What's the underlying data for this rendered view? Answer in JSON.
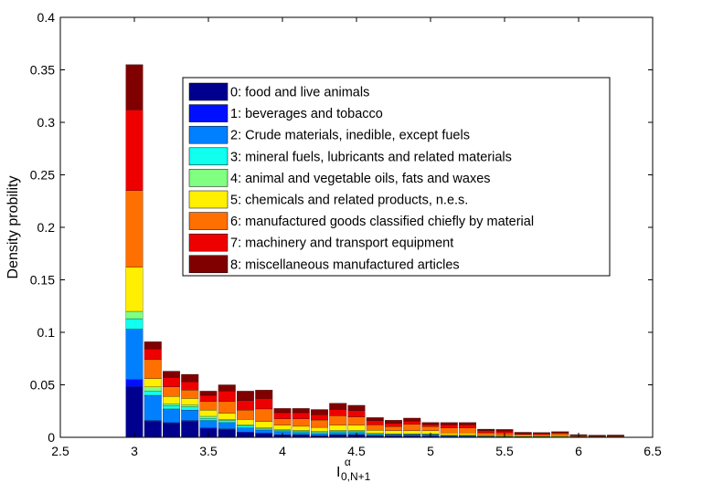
{
  "chart_data": {
    "type": "bar",
    "stacked": true,
    "title": "",
    "xlabel": {
      "base": "I",
      "sup": "α",
      "sub": "0,N+1"
    },
    "ylabel": "Density probility",
    "xlim": [
      2.5,
      6.5
    ],
    "ylim": [
      0,
      0.4
    ],
    "xticks": [
      "2.5",
      "3",
      "3.5",
      "4",
      "4.5",
      "5",
      "5.5",
      "6",
      "6.5"
    ],
    "xtick_values": [
      2.5,
      3,
      3.5,
      4,
      4.5,
      5,
      5.5,
      6,
      6.5
    ],
    "yticks": [
      "0",
      "0.05",
      "0.1",
      "0.15",
      "0.2",
      "0.25",
      "0.3",
      "0.35",
      "0.4"
    ],
    "ytick_values": [
      0,
      0.05,
      0.1,
      0.15,
      0.2,
      0.25,
      0.3,
      0.35,
      0.4
    ],
    "grid": false,
    "legend_position": "upper-center",
    "bin_width": 0.125,
    "x": [
      3.0,
      3.125,
      3.25,
      3.375,
      3.5,
      3.625,
      3.75,
      3.875,
      4.0,
      4.125,
      4.25,
      4.375,
      4.5,
      4.625,
      4.75,
      4.875,
      5.0,
      5.125,
      5.25,
      5.375,
      5.5,
      5.625,
      5.75,
      5.875,
      6.0,
      6.125,
      6.25
    ],
    "series": [
      {
        "name": "0: food and live animals",
        "color": "#00008f",
        "values": [
          0.048,
          0.015,
          0.013,
          0.015,
          0.008,
          0.007,
          0.004,
          0.003,
          0.002,
          0.002,
          0.001,
          0.002,
          0.002,
          0.001,
          0.001,
          0.001,
          0.001,
          0.0005,
          0.0005,
          0.0003,
          0.0002,
          0.0002,
          0.0001,
          0.0001,
          0.0001,
          0.0001,
          0.0001
        ]
      },
      {
        "name": "1: beverages and tobacco",
        "color": "#0010ff",
        "values": [
          0.007,
          0.001,
          0.001,
          0.001,
          0.001,
          0.001,
          0.001,
          0.001,
          0.0005,
          0.0005,
          0.0005,
          0.0005,
          0.0005,
          0.0003,
          0.0003,
          0.0003,
          0.0002,
          0.0002,
          0.0002,
          0.0001,
          0.0001,
          0.0001,
          0.0001,
          0,
          0,
          0,
          0
        ]
      },
      {
        "name": "2: Crude materials, inedible, except fuels",
        "color": "#0080ff",
        "values": [
          0.048,
          0.024,
          0.013,
          0.01,
          0.007,
          0.006,
          0.004,
          0.003,
          0.003,
          0.002,
          0.002,
          0.002,
          0.002,
          0.001,
          0.001,
          0.001,
          0.001,
          0.0008,
          0.0008,
          0.0005,
          0.0003,
          0.0003,
          0.0002,
          0.0002,
          0.0001,
          0.0001,
          0.0001
        ]
      },
      {
        "name": "3: mineral fuels, lubricants and related materials",
        "color": "#10ffef",
        "values": [
          0.01,
          0.004,
          0.003,
          0.003,
          0.002,
          0.002,
          0.002,
          0.001,
          0.001,
          0.001,
          0.001,
          0.001,
          0.001,
          0.001,
          0.0005,
          0.0005,
          0.0005,
          0.0003,
          0.0003,
          0.0002,
          0.0002,
          0.0001,
          0.0001,
          0.0001,
          0,
          0,
          0
        ]
      },
      {
        "name": "4: animal and vegetable oils, fats and waxes",
        "color": "#80ff80",
        "values": [
          0.007,
          0.004,
          0.002,
          0.002,
          0.002,
          0.001,
          0.001,
          0.001,
          0.001,
          0.001,
          0.001,
          0.001,
          0.001,
          0.0005,
          0.0005,
          0.0005,
          0.0005,
          0.0003,
          0.0003,
          0.0002,
          0.0002,
          0.0001,
          0.0001,
          0.0001,
          0,
          0,
          0
        ]
      },
      {
        "name": "5: chemicals and related products, n.e.s.",
        "color": "#ffef00",
        "values": [
          0.042,
          0.008,
          0.007,
          0.006,
          0.006,
          0.006,
          0.005,
          0.006,
          0.004,
          0.004,
          0.004,
          0.005,
          0.005,
          0.003,
          0.003,
          0.003,
          0.003,
          0.002,
          0.002,
          0.001,
          0.001,
          0.001,
          0.001,
          0.001,
          0.0005,
          0.0003,
          0.0003
        ]
      },
      {
        "name": "6: manufactured goods classified chiefly by material",
        "color": "#ff7000",
        "values": [
          0.073,
          0.018,
          0.009,
          0.008,
          0.008,
          0.011,
          0.009,
          0.012,
          0.006,
          0.007,
          0.007,
          0.009,
          0.008,
          0.005,
          0.004,
          0.006,
          0.004,
          0.005,
          0.005,
          0.002,
          0.002,
          0.001,
          0.001,
          0.002,
          0.0008,
          0.0005,
          0.0006
        ]
      },
      {
        "name": "7: machinery and transport equipment",
        "color": "#ef0000",
        "values": [
          0.077,
          0.01,
          0.009,
          0.008,
          0.006,
          0.01,
          0.009,
          0.01,
          0.006,
          0.006,
          0.005,
          0.006,
          0.006,
          0.004,
          0.003,
          0.003,
          0.002,
          0.003,
          0.003,
          0.002,
          0.002,
          0.001,
          0.001,
          0.001,
          0.0005,
          0.0005,
          0.0006
        ]
      },
      {
        "name": "8: miscellaneous manufactured articles",
        "color": "#800000",
        "values": [
          0.043,
          0.007,
          0.006,
          0.007,
          0.004,
          0.006,
          0.009,
          0.008,
          0.004,
          0.004,
          0.005,
          0.006,
          0.005,
          0.003,
          0.003,
          0.003,
          0.002,
          0.002,
          0.002,
          0.0015,
          0.0015,
          0.001,
          0.001,
          0.0009,
          0.0006,
          0.0006,
          0.0005
        ]
      }
    ]
  }
}
